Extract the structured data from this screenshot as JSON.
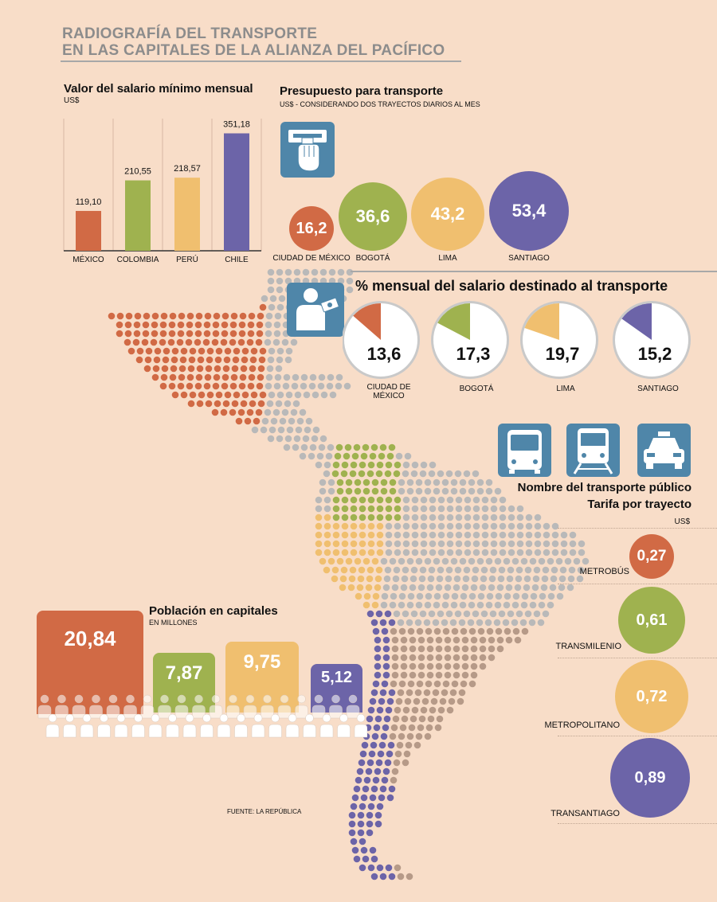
{
  "title": {
    "line1": "RADIOGRAFÍA DEL TRANSPORTE",
    "line2": "EN LAS CAPITALES DE LA ALIANZA DEL PACÍFICO"
  },
  "colors": {
    "mexico": "#d16a45",
    "colombia": "#9fb24f",
    "peru": "#f0bf6f",
    "chile": "#6c64a8",
    "dots_default": "#b9b9b9",
    "dots_brazil": "#b69a88",
    "icon_blue": "#4f86a9",
    "background": "#f8ddc8"
  },
  "chart_data": [
    {
      "type": "bar",
      "title": "Valor del salario mínimo mensual",
      "ylabel": "US$",
      "categories": [
        "MÉXICO",
        "COLOMBIA",
        "PERÚ",
        "CHILE"
      ],
      "values": [
        119.1,
        210.55,
        218.57,
        351.18
      ],
      "value_labels": [
        "119,10",
        "210,55",
        "218,57",
        "351,18"
      ],
      "ylim": [
        0,
        400
      ],
      "grid": true
    },
    {
      "type": "bubble",
      "title": "Presupuesto para transporte",
      "subtitle": "US$ - CONSIDERANDO DOS TRAYECTOS DIARIOS AL MES",
      "categories": [
        "CIUDAD DE MÉXICO",
        "BOGOTÁ",
        "LIMA",
        "SANTIAGO"
      ],
      "values": [
        16.2,
        36.6,
        43.2,
        53.4
      ],
      "value_labels": [
        "16,2",
        "36,6",
        "43,2",
        "53,4"
      ]
    },
    {
      "type": "pie",
      "title": "% mensual del salario destinado al transporte",
      "categories": [
        "CIUDAD DE MÉXICO",
        "BOGOTÁ",
        "LIMA",
        "SANTIAGO"
      ],
      "values": [
        13.6,
        17.3,
        19.7,
        15.2
      ],
      "value_labels": [
        "13,6",
        "17,3",
        "19,7",
        "15,2"
      ]
    },
    {
      "type": "bubble",
      "title": "Nombre del transporte público",
      "subtitle": "Tarifa por trayecto",
      "unit": "US$",
      "categories": [
        "METROBÚS",
        "TRANSMILENIO",
        "METROPOLITANO",
        "TRANSANTIAGO"
      ],
      "values": [
        0.27,
        0.61,
        0.72,
        0.89
      ],
      "value_labels": [
        "0,27",
        "0,61",
        "0,72",
        "0,89"
      ]
    },
    {
      "type": "bar",
      "title": "Población en capitales",
      "subtitle": "EN MILLONES",
      "categories": [
        "CIUDAD DE MÉXICO",
        "BOGOTÁ",
        "LIMA",
        "SANTIAGO"
      ],
      "values": [
        20.84,
        7.87,
        9.75,
        5.12
      ],
      "value_labels": [
        "20,84",
        "7,87",
        "9,75",
        "5,12"
      ]
    }
  ],
  "icons": {
    "budget": "card-reader-icon",
    "salary": "person-with-money-icon",
    "transport": [
      "bus-icon",
      "train-icon",
      "taxi-icon"
    ]
  },
  "source": "FUENTE: LA REPÚBLICA"
}
